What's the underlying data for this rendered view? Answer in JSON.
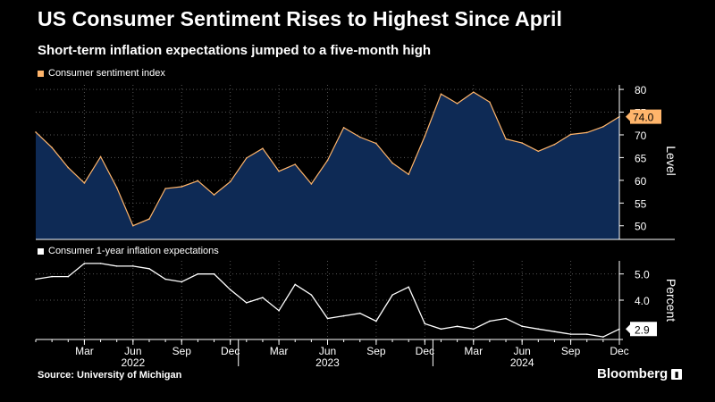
{
  "header": {
    "title": "US Consumer Sentiment Rises to Highest Since April",
    "subtitle": "Short-term inflation expectations jumped to a five-month high"
  },
  "footer": {
    "source": "Source: University of Michigan",
    "brand": "Bloomberg"
  },
  "colors": {
    "background": "#000000",
    "sentiment_line": "#ffb56b",
    "sentiment_fill": "#0e2a55",
    "inflation_line": "#ffffff"
  },
  "chart_data": [
    {
      "type": "area",
      "title": "Consumer sentiment index",
      "legend": "Consumer sentiment index",
      "ylabel": "Level",
      "ylim": [
        47,
        81
      ],
      "yticks": [
        50,
        55,
        60,
        65,
        70,
        75,
        80
      ],
      "last_value_label": "74.0",
      "x": [
        "2021-12",
        "2022-01",
        "2022-02",
        "2022-03",
        "2022-04",
        "2022-05",
        "2022-06",
        "2022-07",
        "2022-08",
        "2022-09",
        "2022-10",
        "2022-11",
        "2022-12",
        "2023-01",
        "2023-02",
        "2023-03",
        "2023-04",
        "2023-05",
        "2023-06",
        "2023-07",
        "2023-08",
        "2023-09",
        "2023-10",
        "2023-11",
        "2023-12",
        "2024-01",
        "2024-02",
        "2024-03",
        "2024-04",
        "2024-05",
        "2024-06",
        "2024-07",
        "2024-08",
        "2024-09",
        "2024-10",
        "2024-11",
        "2024-12"
      ],
      "values": [
        70.6,
        67.2,
        62.8,
        59.4,
        65.2,
        58.4,
        50.0,
        51.5,
        58.2,
        58.6,
        59.9,
        56.8,
        59.7,
        64.9,
        67.0,
        62.0,
        63.5,
        59.2,
        64.4,
        71.6,
        69.5,
        68.1,
        63.8,
        61.3,
        69.7,
        79.0,
        76.9,
        79.4,
        77.2,
        69.1,
        68.2,
        66.4,
        67.9,
        70.1,
        70.5,
        71.8,
        74.0
      ]
    },
    {
      "type": "line",
      "title": "Consumer 1-year inflation expectations",
      "legend": "Consumer 1-year inflation expectations",
      "ylabel": "Percent",
      "ylim": [
        2.5,
        5.5
      ],
      "yticks": [
        4.0,
        5.0
      ],
      "last_value_label": "2.9",
      "x": [
        "2021-12",
        "2022-01",
        "2022-02",
        "2022-03",
        "2022-04",
        "2022-05",
        "2022-06",
        "2022-07",
        "2022-08",
        "2022-09",
        "2022-10",
        "2022-11",
        "2022-12",
        "2023-01",
        "2023-02",
        "2023-03",
        "2023-04",
        "2023-05",
        "2023-06",
        "2023-07",
        "2023-08",
        "2023-09",
        "2023-10",
        "2023-11",
        "2023-12",
        "2024-01",
        "2024-02",
        "2024-03",
        "2024-04",
        "2024-05",
        "2024-06",
        "2024-07",
        "2024-08",
        "2024-09",
        "2024-10",
        "2024-11",
        "2024-12"
      ],
      "values": [
        4.8,
        4.9,
        4.9,
        5.4,
        5.4,
        5.3,
        5.3,
        5.2,
        4.8,
        4.7,
        5.0,
        5.0,
        4.4,
        3.9,
        4.1,
        3.6,
        4.6,
        4.2,
        3.3,
        3.4,
        3.5,
        3.2,
        4.2,
        4.5,
        3.1,
        2.9,
        3.0,
        2.9,
        3.2,
        3.3,
        3.0,
        2.9,
        2.8,
        2.7,
        2.7,
        2.6,
        2.9
      ]
    }
  ],
  "x_axis": {
    "month_ticks": [
      {
        "label": "Mar",
        "index": 3
      },
      {
        "label": "Jun",
        "index": 6
      },
      {
        "label": "Sep",
        "index": 9
      },
      {
        "label": "Dec",
        "index": 12
      },
      {
        "label": "Mar",
        "index": 15
      },
      {
        "label": "Jun",
        "index": 18
      },
      {
        "label": "Sep",
        "index": 21
      },
      {
        "label": "Dec",
        "index": 24
      },
      {
        "label": "Mar",
        "index": 27
      },
      {
        "label": "Jun",
        "index": 30
      },
      {
        "label": "Sep",
        "index": 33
      },
      {
        "label": "Dec",
        "index": 36
      }
    ],
    "year_labels": [
      {
        "label": "2022",
        "index": 6
      },
      {
        "label": "2023",
        "index": 18
      },
      {
        "label": "2024",
        "index": 30
      }
    ],
    "year_separators": [
      12,
      24
    ]
  }
}
